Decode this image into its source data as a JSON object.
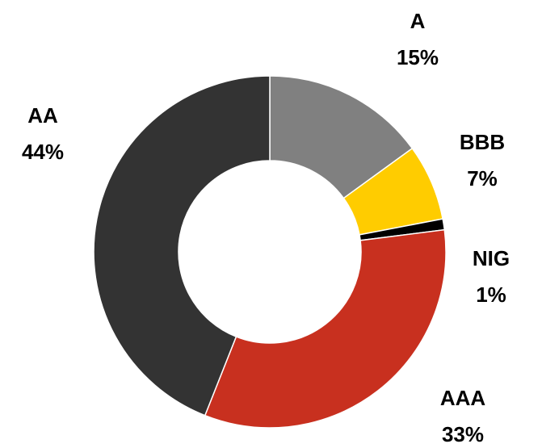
{
  "chart_data": {
    "type": "donut",
    "categories": [
      "A",
      "BBB",
      "NIG",
      "AAA",
      "AA"
    ],
    "values": [
      15,
      7,
      1,
      33,
      44
    ],
    "value_labels": [
      "15%",
      "7%",
      "1%",
      "33%",
      "44%"
    ],
    "colors": [
      "#808080",
      "#ffcc00",
      "#000000",
      "#c8301f",
      "#333333"
    ]
  }
}
